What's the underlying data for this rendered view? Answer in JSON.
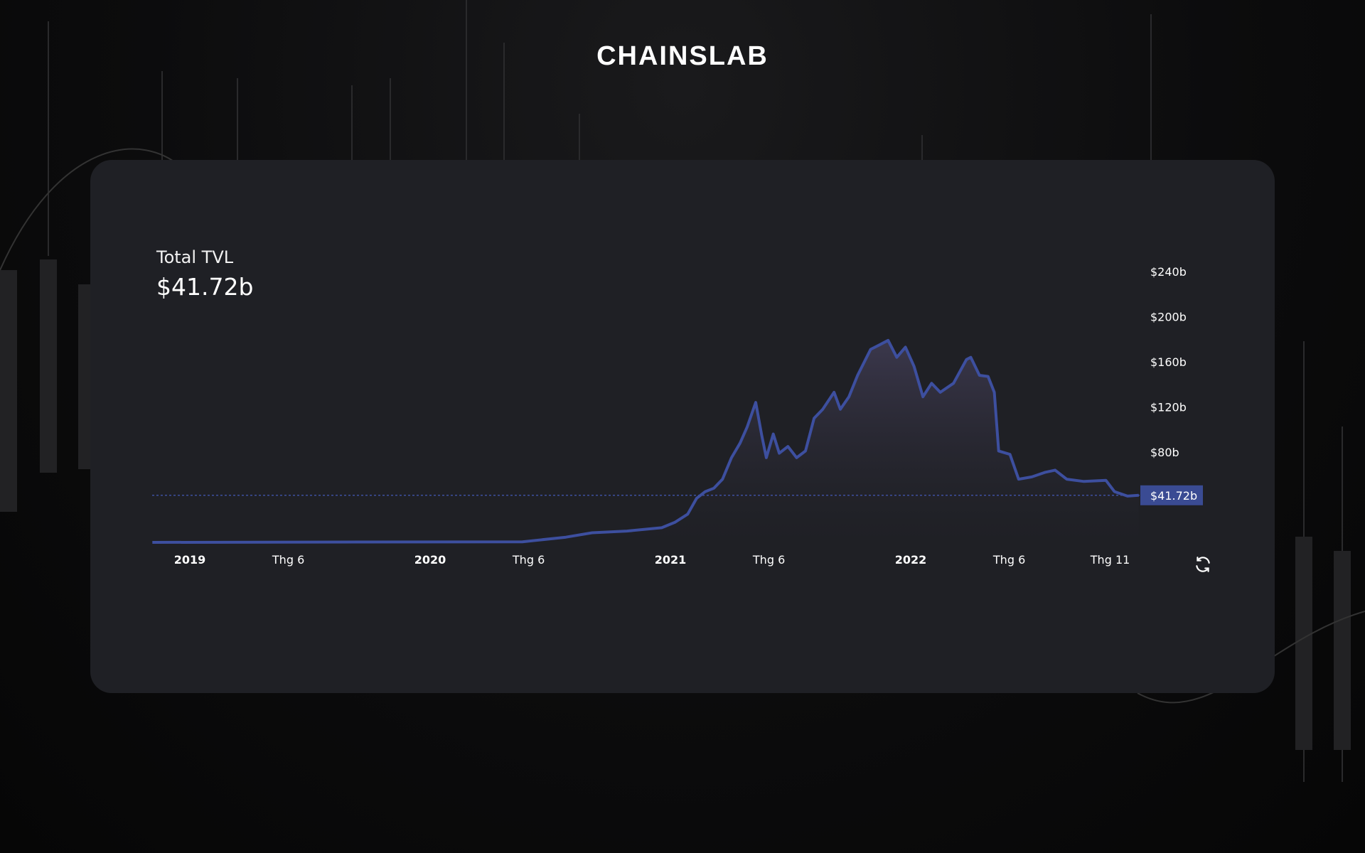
{
  "brand": {
    "logo_text": "CHAINSLAB"
  },
  "summary": {
    "label": "Total TVL",
    "value": "$41.72b"
  },
  "controls": {
    "refresh_icon": "refresh-icon"
  },
  "colors": {
    "line": "#3d4f9f",
    "price_tag": "#3a4b93",
    "card": "#1f2025"
  },
  "chart_data": {
    "type": "area",
    "title": "Total TVL",
    "xlabel": "",
    "ylabel": "",
    "x_unit": "year (decimal)",
    "y_unit": "$ billions",
    "ylim": [
      0,
      240
    ],
    "xlim": [
      2018.84,
      2022.95
    ],
    "y_ticks": [
      {
        "value": 80,
        "label": "$80b"
      },
      {
        "value": 120,
        "label": "$120b"
      },
      {
        "value": 160,
        "label": "$160b"
      },
      {
        "value": 200,
        "label": "$200b"
      },
      {
        "value": 240,
        "label": "$240b"
      }
    ],
    "x_ticks": [
      {
        "value": 2019.0,
        "label": "2019",
        "bold": true
      },
      {
        "value": 2019.41,
        "label": "Thg 6",
        "bold": false
      },
      {
        "value": 2020.0,
        "label": "2020",
        "bold": true
      },
      {
        "value": 2020.41,
        "label": "Thg 6",
        "bold": false
      },
      {
        "value": 2021.0,
        "label": "2021",
        "bold": true
      },
      {
        "value": 2021.41,
        "label": "Thg 6",
        "bold": false
      },
      {
        "value": 2022.0,
        "label": "2022",
        "bold": true
      },
      {
        "value": 2022.41,
        "label": "Thg 6",
        "bold": false
      },
      {
        "value": 2022.83,
        "label": "Thg 11",
        "bold": false
      }
    ],
    "current": {
      "value": 41.72,
      "label": "$41.72b"
    },
    "grid": false,
    "series": [
      {
        "name": "TVL",
        "points": [
          [
            2018.844,
            0
          ],
          [
            2020.384,
            0.5
          ],
          [
            2020.565,
            4.6
          ],
          [
            2020.674,
            8.5
          ],
          [
            2020.819,
            10
          ],
          [
            2020.964,
            13
          ],
          [
            2021.018,
            17.7
          ],
          [
            2021.072,
            25
          ],
          [
            2021.109,
            39
          ],
          [
            2021.145,
            45
          ],
          [
            2021.181,
            48
          ],
          [
            2021.217,
            56
          ],
          [
            2021.254,
            75
          ],
          [
            2021.29,
            88
          ],
          [
            2021.319,
            102
          ],
          [
            2021.355,
            124
          ],
          [
            2021.38,
            95
          ],
          [
            2021.399,
            75
          ],
          [
            2021.428,
            96
          ],
          [
            2021.453,
            79
          ],
          [
            2021.489,
            85
          ],
          [
            2021.525,
            75
          ],
          [
            2021.562,
            81
          ],
          [
            2021.598,
            110
          ],
          [
            2021.634,
            118
          ],
          [
            2021.681,
            133
          ],
          [
            2021.707,
            118
          ],
          [
            2021.743,
            129
          ],
          [
            2021.779,
            148
          ],
          [
            2021.833,
            171
          ],
          [
            2021.87,
            175
          ],
          [
            2021.906,
            179
          ],
          [
            2021.942,
            164
          ],
          [
            2021.978,
            173
          ],
          [
            2022.014,
            156
          ],
          [
            2022.051,
            129
          ],
          [
            2022.087,
            141
          ],
          [
            2022.123,
            133
          ],
          [
            2022.178,
            141
          ],
          [
            2022.232,
            162
          ],
          [
            2022.25,
            164
          ],
          [
            2022.286,
            148
          ],
          [
            2022.322,
            147
          ],
          [
            2022.348,
            133
          ],
          [
            2022.366,
            81
          ],
          [
            2022.413,
            78
          ],
          [
            2022.449,
            56
          ],
          [
            2022.504,
            58
          ],
          [
            2022.558,
            62
          ],
          [
            2022.601,
            64
          ],
          [
            2022.649,
            56
          ],
          [
            2022.721,
            54
          ],
          [
            2022.812,
            55
          ],
          [
            2022.848,
            45
          ],
          [
            2022.902,
            41
          ],
          [
            2022.949,
            41.72
          ]
        ]
      }
    ]
  }
}
